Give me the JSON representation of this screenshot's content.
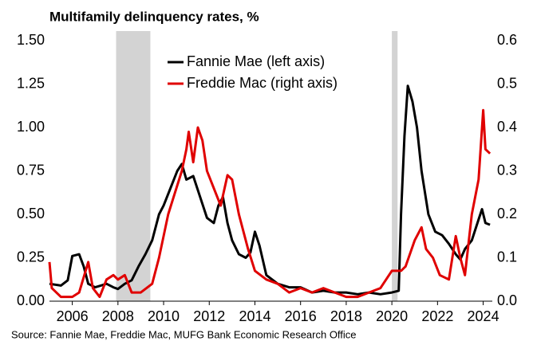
{
  "chart_data": {
    "type": "line",
    "title": "Multifamily delinquency rates, %",
    "source": "Source: Fannie Mae, Freddie Mac, MUFG Bank Economic Research Office",
    "xlim": [
      2005,
      2024.4
    ],
    "xticks": [
      2006,
      2008,
      2010,
      2012,
      2014,
      2016,
      2018,
      2020,
      2022,
      2024
    ],
    "ylim": [
      0,
      1.5
    ],
    "yticks": [
      {
        "value": 0,
        "label": "0.00"
      },
      {
        "value": 0.25,
        "label": "0.25"
      },
      {
        "value": 0.5,
        "label": "0.50"
      },
      {
        "value": 0.75,
        "label": "0.75"
      },
      {
        "value": 1,
        "label": "1.00"
      },
      {
        "value": 1.25,
        "label": "1.25"
      },
      {
        "value": 1.5,
        "label": "1.50"
      }
    ],
    "y2lim": [
      0,
      0.6
    ],
    "y2ticks": [
      {
        "value": 0,
        "label": "0.0"
      },
      0.1,
      0.2,
      0.3,
      0.4,
      0.5,
      0.6
    ],
    "legend": "upper center",
    "shaded_color": "#d3d3d3",
    "shaded_periods": [
      [
        2007.92,
        2009.42
      ],
      [
        2020.0,
        2020.25
      ]
    ],
    "series": [
      {
        "name": "Fannie Mae (left axis)",
        "color": "#000000",
        "axis": "y",
        "x": [
          2005.0,
          2005.5,
          2005.8,
          2006.0,
          2006.3,
          2006.5,
          2006.7,
          2007.0,
          2007.5,
          2007.8,
          2008.0,
          2008.3,
          2008.6,
          2008.9,
          2009.2,
          2009.5,
          2009.8,
          2010.0,
          2010.3,
          2010.6,
          2010.8,
          2011.0,
          2011.3,
          2011.6,
          2011.9,
          2012.2,
          2012.4,
          2012.6,
          2012.8,
          2013.0,
          2013.3,
          2013.6,
          2013.8,
          2014.0,
          2014.2,
          2014.5,
          2015.0,
          2015.5,
          2016.0,
          2016.5,
          2017.0,
          2017.5,
          2018.0,
          2018.5,
          2019.0,
          2019.5,
          2020.0,
          2020.3,
          2020.4,
          2020.55,
          2020.7,
          2020.9,
          2021.1,
          2021.3,
          2021.6,
          2021.9,
          2022.2,
          2022.5,
          2022.8,
          2023.0,
          2023.2,
          2023.5,
          2023.8,
          2023.95,
          2024.1,
          2024.3
        ],
        "values": [
          0.1,
          0.09,
          0.12,
          0.26,
          0.27,
          0.2,
          0.1,
          0.08,
          0.1,
          0.08,
          0.07,
          0.1,
          0.12,
          0.2,
          0.27,
          0.35,
          0.5,
          0.55,
          0.65,
          0.75,
          0.79,
          0.7,
          0.72,
          0.6,
          0.48,
          0.45,
          0.55,
          0.6,
          0.45,
          0.35,
          0.27,
          0.25,
          0.28,
          0.4,
          0.32,
          0.15,
          0.1,
          0.08,
          0.08,
          0.05,
          0.06,
          0.05,
          0.05,
          0.04,
          0.05,
          0.04,
          0.05,
          0.06,
          0.5,
          0.95,
          1.24,
          1.15,
          1.0,
          0.75,
          0.5,
          0.4,
          0.38,
          0.33,
          0.27,
          0.24,
          0.3,
          0.35,
          0.47,
          0.53,
          0.45,
          0.44
        ]
      },
      {
        "name": "Freddie Mac (right axis)",
        "color": "#e00000",
        "axis": "y2",
        "x": [
          2005.0,
          2005.1,
          2005.5,
          2006.0,
          2006.3,
          2006.7,
          2006.9,
          2007.2,
          2007.5,
          2007.8,
          2008.0,
          2008.3,
          2008.6,
          2009.0,
          2009.5,
          2009.8,
          2010.2,
          2010.5,
          2010.8,
          2011.0,
          2011.1,
          2011.3,
          2011.5,
          2011.7,
          2011.9,
          2012.2,
          2012.5,
          2012.8,
          2013.0,
          2013.3,
          2013.7,
          2014.0,
          2014.5,
          2015.0,
          2015.5,
          2016.0,
          2016.5,
          2017.0,
          2017.5,
          2018.0,
          2018.5,
          2019.0,
          2019.5,
          2020.0,
          2020.4,
          2020.6,
          2021.0,
          2021.3,
          2021.5,
          2021.8,
          2022.1,
          2022.5,
          2022.8,
          2023.0,
          2023.2,
          2023.5,
          2023.8,
          2024.0,
          2024.1,
          2024.3
        ],
        "values": [
          0.09,
          0.03,
          0.01,
          0.01,
          0.02,
          0.09,
          0.03,
          0.01,
          0.05,
          0.06,
          0.05,
          0.06,
          0.02,
          0.02,
          0.04,
          0.1,
          0.2,
          0.25,
          0.3,
          0.35,
          0.39,
          0.32,
          0.4,
          0.37,
          0.3,
          0.26,
          0.22,
          0.29,
          0.28,
          0.2,
          0.12,
          0.07,
          0.05,
          0.04,
          0.02,
          0.03,
          0.02,
          0.03,
          0.02,
          0.01,
          0.01,
          0.02,
          0.03,
          0.07,
          0.07,
          0.08,
          0.14,
          0.17,
          0.12,
          0.1,
          0.06,
          0.05,
          0.15,
          0.1,
          0.06,
          0.2,
          0.28,
          0.44,
          0.35,
          0.34
        ]
      }
    ]
  }
}
